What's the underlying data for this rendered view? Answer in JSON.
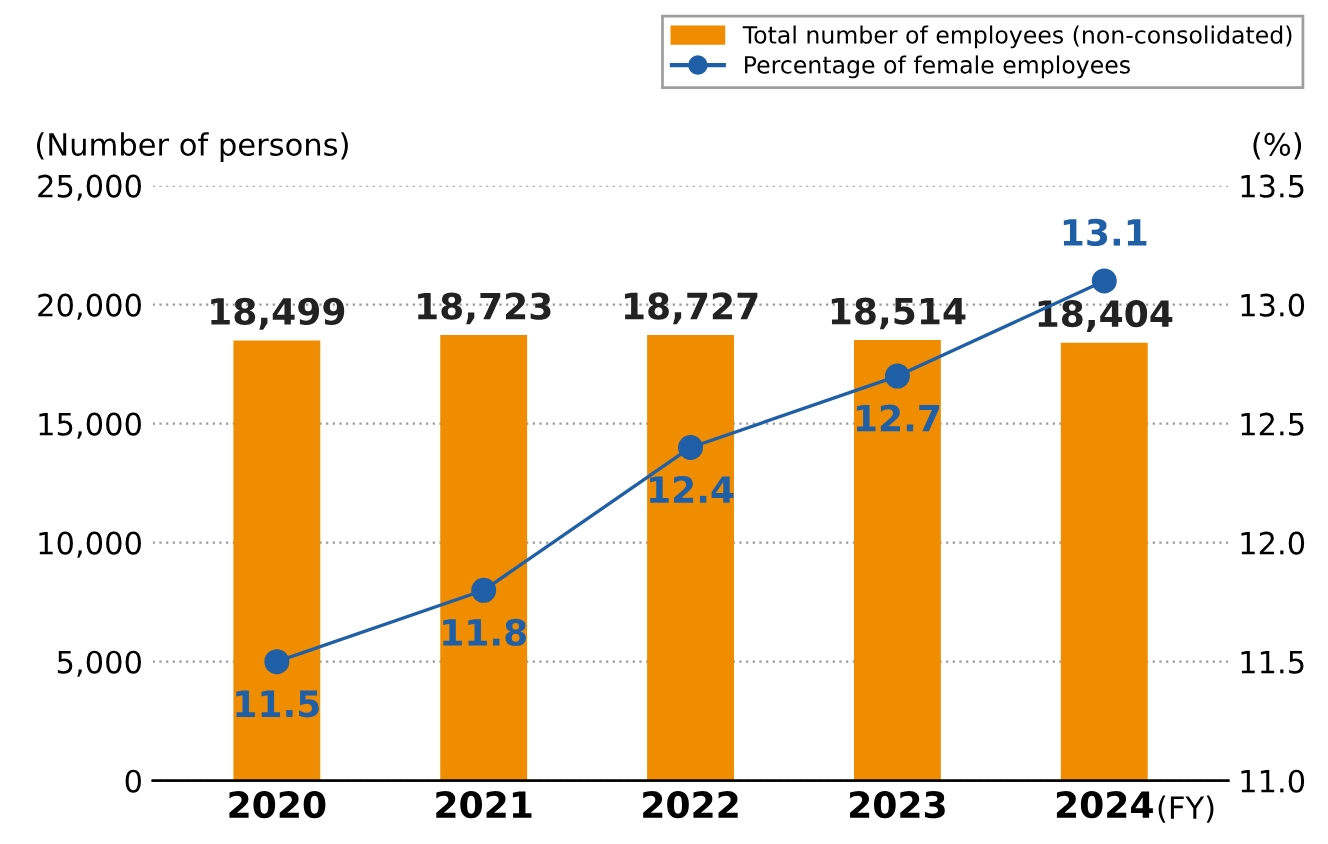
{
  "chart_data": {
    "type": "bar",
    "categories": [
      "2020",
      "2021",
      "2022",
      "2023",
      "2024"
    ],
    "xlabel": "(FY)",
    "ylabel": "(Number of persons)",
    "y2label": "(%)",
    "series": [
      {
        "name": "Total number of employees (non-consolidated)",
        "color": "#f08c00",
        "values": [
          18499,
          18723,
          18727,
          18514,
          18404
        ],
        "value_labels": [
          "18,499",
          "18,723",
          "18,727",
          "18,514",
          "18,404"
        ]
      },
      {
        "name": "Percentage of female employees",
        "type": "line",
        "axis": "y2",
        "color": "#1f5fa8",
        "values": [
          11.5,
          11.8,
          12.4,
          12.7,
          13.1
        ],
        "value_labels": [
          "11.5",
          "11.8",
          "12.4",
          "12.7",
          "13.1"
        ]
      }
    ],
    "ylim": [
      0,
      25000
    ],
    "yticks": [
      {
        "value": 0,
        "label": "0"
      },
      {
        "value": 5000,
        "label": "5,000"
      },
      {
        "value": 10000,
        "label": "10,000"
      },
      {
        "value": 15000,
        "label": "15,000"
      },
      {
        "value": 20000,
        "label": "20,000"
      },
      {
        "value": 25000,
        "label": "25,000"
      }
    ],
    "y2lim": [
      11.0,
      13.5
    ],
    "y2ticks": [
      {
        "value": 11.0,
        "label": "11.0"
      },
      {
        "value": 11.5,
        "label": "11.5"
      },
      {
        "value": 12.0,
        "label": "12.0"
      },
      {
        "value": 12.5,
        "label": "12.5"
      },
      {
        "value": 13.0,
        "label": "13.0"
      },
      {
        "value": 13.5,
        "label": "13.5"
      }
    ],
    "grid": "y",
    "legend": "top right",
    "marker": "circle",
    "line_style": "solid"
  }
}
